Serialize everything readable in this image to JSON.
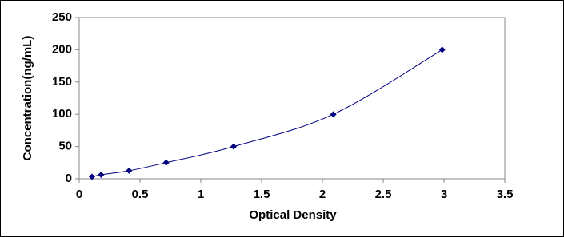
{
  "chart_data": {
    "type": "scatter",
    "x_label": "Optical Density",
    "y_label": "Concentration(ng/mL)",
    "series": [
      {
        "color": "#000080",
        "x": [
          0.105,
          0.18,
          0.41,
          0.715,
          1.27,
          2.09,
          2.985
        ],
        "values": [
          3.125,
          6.25,
          12.5,
          25,
          50,
          100,
          200
        ]
      }
    ],
    "xlim": [
      0,
      3.5
    ],
    "xticks": [
      0,
      0.5,
      1,
      1.5,
      2,
      2.5,
      3,
      3.5
    ],
    "ylim": [
      0,
      250
    ],
    "yticks": [
      0,
      50,
      100,
      150,
      200,
      250
    ],
    "smooth_line": true
  }
}
